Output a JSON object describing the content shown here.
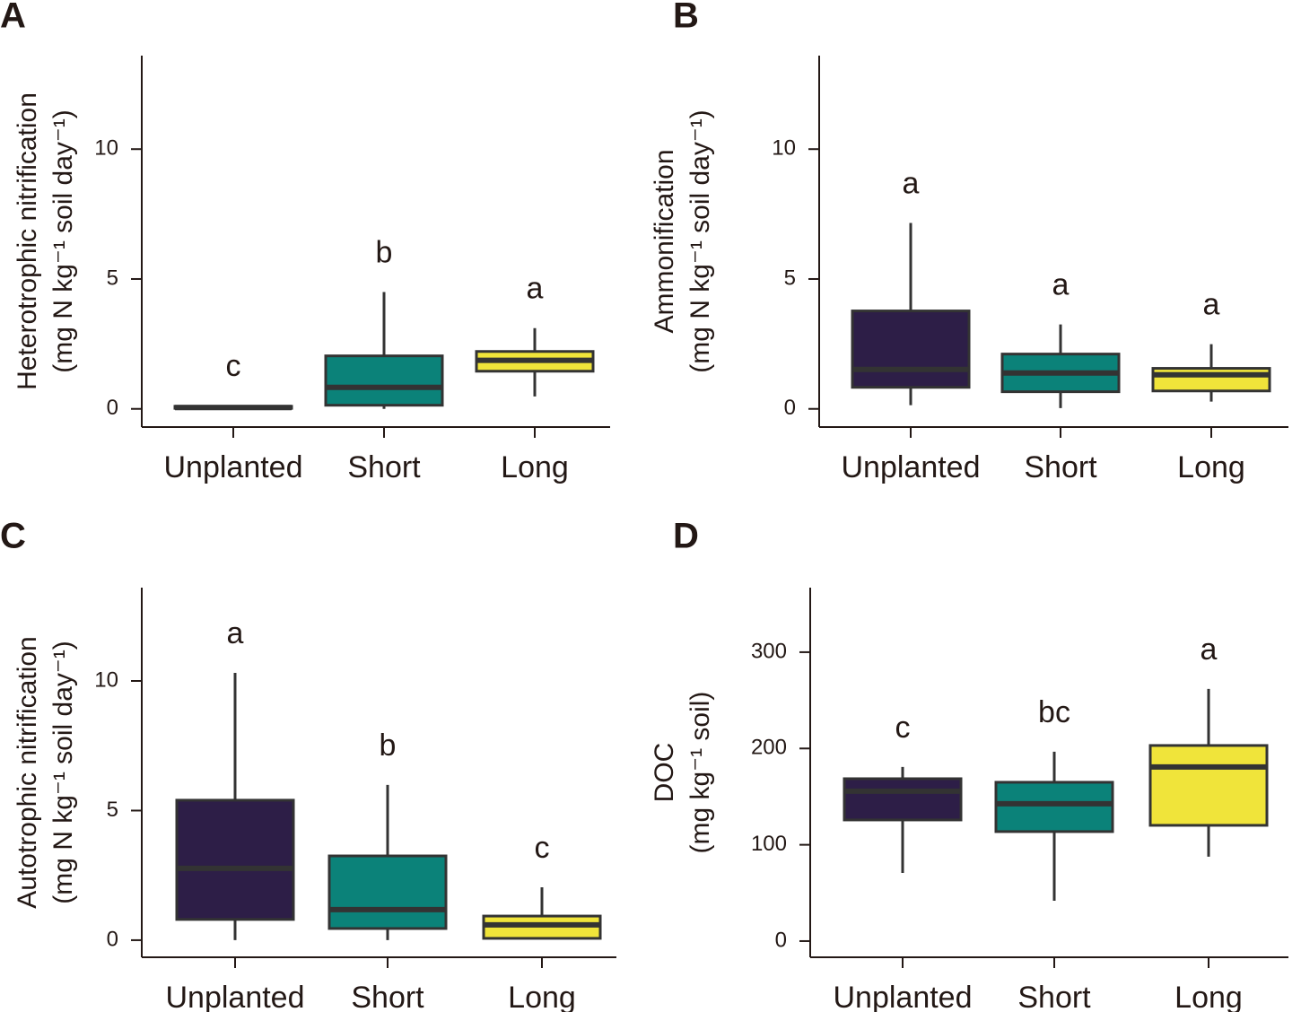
{
  "chart_data": [
    {
      "type": "box",
      "panel": "A",
      "ylabel": [
        "Heterotrophic nitrification",
        "(mg N kg⁻¹ soil day⁻¹)"
      ],
      "categories": [
        "Unplanted",
        "Short",
        "Long"
      ],
      "colors": [
        "#2d1e47",
        "#0b8279",
        "#f0e43a"
      ],
      "whisker_low": [
        0,
        0,
        0.48
      ],
      "q1": [
        0.02,
        0.14,
        1.45
      ],
      "median": [
        0.05,
        0.83,
        1.87
      ],
      "q3": [
        0.1,
        2.04,
        2.21
      ],
      "whisker_high": [
        0.12,
        4.5,
        3.11
      ],
      "letters": [
        "c",
        "b",
        "a"
      ],
      "ylim": [
        -0.7,
        13.6
      ],
      "yticks": [
        0,
        5,
        10
      ]
    },
    {
      "type": "box",
      "panel": "B",
      "ylabel": [
        "Ammonification",
        "(mg N kg⁻¹ soil day⁻¹)"
      ],
      "categories": [
        "Unplanted",
        "Short",
        "Long"
      ],
      "colors": [
        "#2d1e47",
        "#0b8279",
        "#f0e43a"
      ],
      "whisker_low": [
        0.14,
        0.03,
        0.28
      ],
      "q1": [
        0.83,
        0.66,
        0.69
      ],
      "median": [
        1.52,
        1.38,
        1.31
      ],
      "q3": [
        3.77,
        2.11,
        1.56
      ],
      "whisker_high": [
        7.16,
        3.25,
        2.49
      ],
      "letters": [
        "a",
        "a",
        "a"
      ],
      "ylim": [
        -0.7,
        13.6
      ],
      "yticks": [
        0,
        5,
        10
      ]
    },
    {
      "type": "box",
      "panel": "C",
      "ylabel": [
        "Autotrophic nitrification",
        "(mg N kg⁻¹ soil day⁻¹)"
      ],
      "categories": [
        "Unplanted",
        "Short",
        "Long"
      ],
      "colors": [
        "#2d1e47",
        "#0b8279",
        "#f0e43a"
      ],
      "whisker_low": [
        0,
        0,
        0.07
      ],
      "q1": [
        0.8,
        0.45,
        0.07
      ],
      "median": [
        2.77,
        1.18,
        0.59
      ],
      "q3": [
        5.4,
        3.25,
        0.93
      ],
      "whisker_high": [
        10.31,
        5.99,
        2.04
      ],
      "letters": [
        "a",
        "b",
        "c"
      ],
      "ylim": [
        -0.66,
        13.6
      ],
      "yticks": [
        0,
        5,
        10
      ]
    },
    {
      "type": "box",
      "panel": "D",
      "ylabel": [
        "DOC",
        "(mg kg⁻¹ soil)"
      ],
      "categories": [
        "Unplanted",
        "Short",
        "Long"
      ],
      "colors": [
        "#2d1e47",
        "#0b8279",
        "#f0e43a"
      ],
      "whisker_low": [
        70.8,
        41.9,
        87.6
      ],
      "q1": [
        125.8,
        113.7,
        120.2
      ],
      "median": [
        155.6,
        142.6,
        180.8
      ],
      "q3": [
        168.6,
        164.9,
        203.1
      ],
      "whisker_high": [
        180.8,
        196.6,
        261.8
      ],
      "letters": [
        "c",
        "bc",
        "a"
      ],
      "ylim": [
        -16.8,
        367
      ],
      "yticks": [
        0,
        100,
        200,
        300
      ]
    }
  ]
}
